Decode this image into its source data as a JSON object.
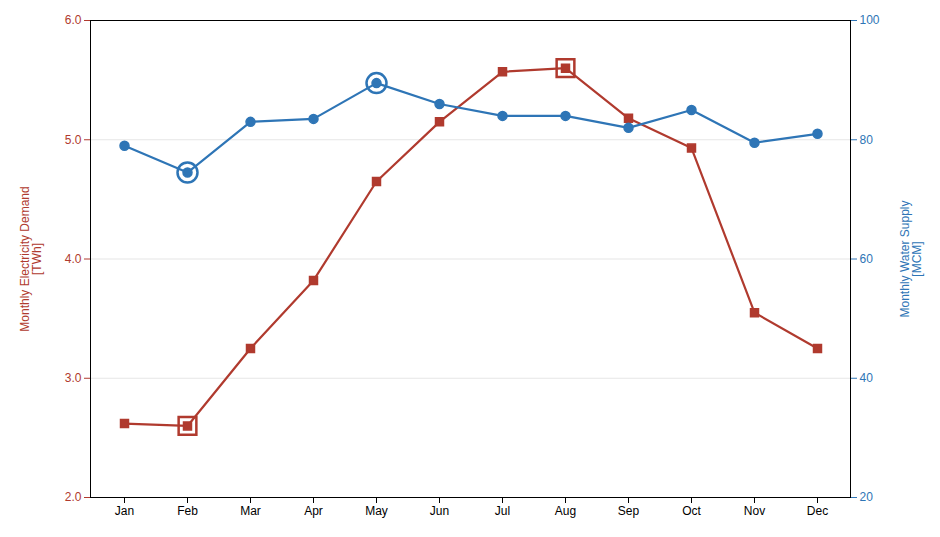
{
  "chart_data": {
    "type": "line",
    "categories": [
      "Jan",
      "Feb",
      "Mar",
      "Apr",
      "May",
      "Jun",
      "Jul",
      "Aug",
      "Sep",
      "Oct",
      "Nov",
      "Dec"
    ],
    "series": [
      {
        "color": "#B03A2E",
        "marker": "square",
        "values": [
          2.62,
          2.6,
          3.25,
          3.82,
          4.65,
          5.15,
          5.57,
          5.6,
          5.18,
          4.93,
          3.55,
          3.25
        ]
      },
      {
        "type": "scatter",
        "color": "#B03A2E",
        "marker": "open_square",
        "values": [
          null,
          2.6,
          null,
          null,
          null,
          null,
          null,
          5.6,
          null,
          null,
          null,
          null
        ]
      },
      {
        "axis": "y2",
        "color": "#2E75B6",
        "marker": "circle",
        "values": [
          79.0,
          74.5,
          83.0,
          83.5,
          89.5,
          86.0,
          84.0,
          84.0,
          82.0,
          85.0,
          79.5,
          81.0
        ]
      },
      {
        "axis": "y2",
        "type": "scatter",
        "color": "#2E75B6",
        "marker": "open_circle",
        "values": [
          null,
          74.5,
          null,
          null,
          89.5,
          null,
          null,
          null,
          null,
          null,
          null,
          null
        ]
      }
    ],
    "ylabel": "Monthly Electricity Demand\n[TWh]",
    "y2label": "Monthly Water Supply\n[MCM]",
    "ylabel_color": "#B03A2E",
    "y2label_color": "#2E75B6",
    "ylim": [
      2.0,
      6.0
    ],
    "yticks": [
      {
        "value": 2.0,
        "label": "2.0"
      },
      {
        "value": 3.0,
        "label": "3.0"
      },
      {
        "value": 4.0,
        "label": "4.0"
      },
      {
        "value": 5.0,
        "label": "5.0"
      },
      {
        "value": 6.0,
        "label": "6.0"
      }
    ],
    "y2lim": [
      20,
      100
    ],
    "y2ticks": [
      20,
      40,
      60,
      80,
      100
    ],
    "grid": true
  }
}
